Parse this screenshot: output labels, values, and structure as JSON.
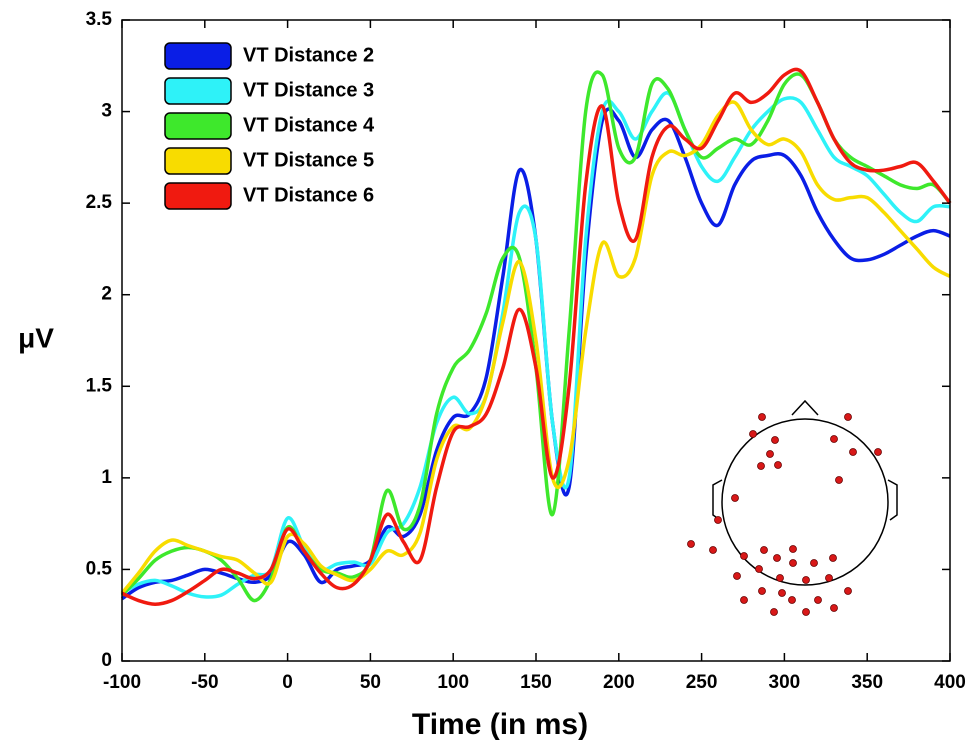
{
  "chart_data": {
    "type": "line",
    "x": [
      -100,
      -90,
      -80,
      -70,
      -60,
      -50,
      -40,
      -30,
      -20,
      -10,
      0,
      10,
      20,
      30,
      40,
      50,
      60,
      70,
      80,
      90,
      100,
      110,
      120,
      130,
      140,
      150,
      160,
      170,
      180,
      190,
      200,
      210,
      220,
      230,
      240,
      250,
      260,
      270,
      280,
      290,
      300,
      310,
      320,
      330,
      340,
      350,
      360,
      370,
      380,
      390,
      400
    ],
    "series": [
      {
        "name": "VT Distance 2",
        "color": "#0a1ee6",
        "values": [
          0.34,
          0.4,
          0.43,
          0.44,
          0.47,
          0.5,
          0.48,
          0.45,
          0.43,
          0.47,
          0.65,
          0.58,
          0.43,
          0.5,
          0.52,
          0.55,
          0.73,
          0.68,
          0.8,
          1.15,
          1.33,
          1.35,
          1.55,
          2.1,
          2.68,
          2.3,
          1.3,
          0.95,
          2.2,
          2.95,
          2.95,
          2.75,
          2.9,
          2.95,
          2.75,
          2.5,
          2.38,
          2.6,
          2.73,
          2.76,
          2.76,
          2.65,
          2.45,
          2.3,
          2.2,
          2.19,
          2.22,
          2.27,
          2.32,
          2.35,
          2.32
        ]
      },
      {
        "name": "VT Distance 3",
        "color": "#2ef2f8",
        "values": [
          0.37,
          0.42,
          0.44,
          0.41,
          0.37,
          0.35,
          0.36,
          0.42,
          0.47,
          0.5,
          0.78,
          0.62,
          0.5,
          0.53,
          0.54,
          0.53,
          0.7,
          0.75,
          0.95,
          1.3,
          1.44,
          1.35,
          1.45,
          1.9,
          2.45,
          2.3,
          1.3,
          1.0,
          2.3,
          3.0,
          3.0,
          2.85,
          3.0,
          3.1,
          2.9,
          2.7,
          2.62,
          2.75,
          2.9,
          3.0,
          3.07,
          3.05,
          2.9,
          2.75,
          2.7,
          2.65,
          2.55,
          2.45,
          2.4,
          2.48,
          2.48
        ]
      },
      {
        "name": "VT Distance 4",
        "color": "#3ee82c",
        "values": [
          0.36,
          0.45,
          0.55,
          0.6,
          0.62,
          0.6,
          0.55,
          0.45,
          0.33,
          0.45,
          0.73,
          0.6,
          0.5,
          0.48,
          0.46,
          0.55,
          0.93,
          0.72,
          0.85,
          1.35,
          1.6,
          1.7,
          1.9,
          2.2,
          2.2,
          1.6,
          0.8,
          1.8,
          3.0,
          3.2,
          2.8,
          2.75,
          3.15,
          3.12,
          2.9,
          2.75,
          2.8,
          2.85,
          2.82,
          2.95,
          3.15,
          3.2,
          3.05,
          2.85,
          2.75,
          2.7,
          2.65,
          2.6,
          2.58,
          2.6,
          2.5
        ]
      },
      {
        "name": "VT Distance 5",
        "color": "#f8dc00",
        "values": [
          0.37,
          0.48,
          0.6,
          0.66,
          0.63,
          0.6,
          0.57,
          0.55,
          0.48,
          0.43,
          0.68,
          0.64,
          0.52,
          0.47,
          0.44,
          0.5,
          0.6,
          0.58,
          0.7,
          1.1,
          1.28,
          1.27,
          1.45,
          1.85,
          2.18,
          1.75,
          1.0,
          1.1,
          1.8,
          2.28,
          2.1,
          2.2,
          2.65,
          2.78,
          2.76,
          2.82,
          2.98,
          3.05,
          2.9,
          2.82,
          2.85,
          2.78,
          2.6,
          2.52,
          2.53,
          2.53,
          2.45,
          2.35,
          2.25,
          2.15,
          2.1
        ]
      },
      {
        "name": "VT Distance 6",
        "color": "#f01a10",
        "values": [
          0.37,
          0.33,
          0.31,
          0.33,
          0.38,
          0.44,
          0.5,
          0.48,
          0.45,
          0.5,
          0.72,
          0.6,
          0.48,
          0.4,
          0.42,
          0.55,
          0.8,
          0.65,
          0.55,
          0.95,
          1.25,
          1.28,
          1.35,
          1.6,
          1.92,
          1.6,
          1.0,
          1.5,
          2.6,
          3.03,
          2.5,
          2.3,
          2.75,
          2.92,
          2.85,
          2.8,
          2.95,
          3.1,
          3.05,
          3.1,
          3.2,
          3.22,
          3.05,
          2.85,
          2.72,
          2.68,
          2.68,
          2.7,
          2.72,
          2.62,
          2.5
        ]
      }
    ],
    "x_label": "Time (in ms)",
    "y_label": "μV",
    "xlim": [
      -100,
      400
    ],
    "xticks": [
      -100,
      -50,
      0,
      50,
      100,
      150,
      200,
      250,
      300,
      350,
      400
    ],
    "ylim": [
      0,
      3.5
    ],
    "yticks": [
      0,
      0.5,
      1,
      1.5,
      2,
      2.5,
      3,
      3.5
    ],
    "legend": "upper-left"
  }
}
